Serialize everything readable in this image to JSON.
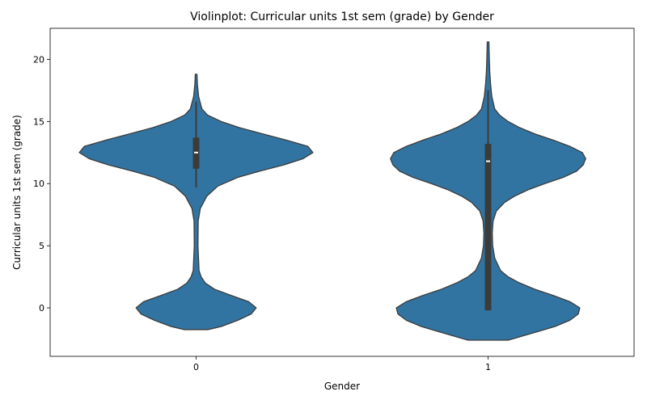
{
  "chart_data": {
    "type": "violin",
    "title": "Violinplot: Curricular units 1st sem (grade) by Gender",
    "xlabel": "Gender",
    "ylabel": "Curricular units 1st sem (grade)",
    "categories": [
      "0",
      "1"
    ],
    "ylim": [
      -3.9,
      22.5
    ],
    "yticks": [
      0,
      5,
      10,
      15,
      20
    ],
    "grid": false,
    "legend": "none",
    "fill_color": "#3274a1",
    "edge_color": "#3b3b3b",
    "box_color": "#3b3b3b",
    "median_color": "#ffffff",
    "violins": [
      {
        "category": "0",
        "y_min": -1.75,
        "y_max": 18.8,
        "median": 12.5,
        "q1": 11.2,
        "q3": 13.7,
        "whisker_low": 9.7,
        "whisker_high": 16.6,
        "density": [
          [
            -1.75,
            0.14
          ],
          [
            -1.5,
            0.3
          ],
          [
            -1.0,
            0.5
          ],
          [
            -0.5,
            0.66
          ],
          [
            0.0,
            0.72
          ],
          [
            0.5,
            0.63
          ],
          [
            1.0,
            0.42
          ],
          [
            1.5,
            0.22
          ],
          [
            2.0,
            0.11
          ],
          [
            2.5,
            0.06
          ],
          [
            3.0,
            0.035
          ],
          [
            5.0,
            0.022
          ],
          [
            7.0,
            0.025
          ],
          [
            8.0,
            0.05
          ],
          [
            9.0,
            0.13
          ],
          [
            9.8,
            0.26
          ],
          [
            10.5,
            0.5
          ],
          [
            11.0,
            0.76
          ],
          [
            11.5,
            1.05
          ],
          [
            12.0,
            1.28
          ],
          [
            12.5,
            1.4
          ],
          [
            13.0,
            1.34
          ],
          [
            13.5,
            1.08
          ],
          [
            14.0,
            0.8
          ],
          [
            14.5,
            0.52
          ],
          [
            15.0,
            0.3
          ],
          [
            15.5,
            0.14
          ],
          [
            16.0,
            0.07
          ],
          [
            17.0,
            0.03
          ],
          [
            18.0,
            0.015
          ],
          [
            18.8,
            0.01
          ]
        ]
      },
      {
        "category": "1",
        "y_min": -2.6,
        "y_max": 21.4,
        "median": 11.8,
        "q1": -0.2,
        "q3": 13.2,
        "whisker_low": -0.2,
        "whisker_high": 17.5,
        "density": [
          [
            -2.6,
            0.24
          ],
          [
            -2.0,
            0.55
          ],
          [
            -1.5,
            0.8
          ],
          [
            -1.0,
            0.98
          ],
          [
            -0.5,
            1.08
          ],
          [
            0.0,
            1.1
          ],
          [
            0.5,
            0.98
          ],
          [
            1.0,
            0.78
          ],
          [
            1.5,
            0.56
          ],
          [
            2.0,
            0.38
          ],
          [
            2.5,
            0.24
          ],
          [
            3.0,
            0.15
          ],
          [
            4.0,
            0.08
          ],
          [
            5.0,
            0.055
          ],
          [
            6.0,
            0.05
          ],
          [
            7.0,
            0.06
          ],
          [
            7.8,
            0.1
          ],
          [
            8.5,
            0.2
          ],
          [
            9.0,
            0.32
          ],
          [
            9.5,
            0.48
          ],
          [
            10.0,
            0.68
          ],
          [
            10.5,
            0.9
          ],
          [
            11.0,
            1.06
          ],
          [
            11.5,
            1.14
          ],
          [
            12.0,
            1.17
          ],
          [
            12.5,
            1.13
          ],
          [
            13.0,
            0.98
          ],
          [
            13.5,
            0.78
          ],
          [
            14.0,
            0.56
          ],
          [
            14.5,
            0.38
          ],
          [
            15.0,
            0.24
          ],
          [
            15.5,
            0.14
          ],
          [
            16.0,
            0.08
          ],
          [
            17.0,
            0.045
          ],
          [
            18.0,
            0.03
          ],
          [
            19.0,
            0.02
          ],
          [
            20.0,
            0.015
          ],
          [
            21.4,
            0.01
          ]
        ]
      }
    ]
  }
}
